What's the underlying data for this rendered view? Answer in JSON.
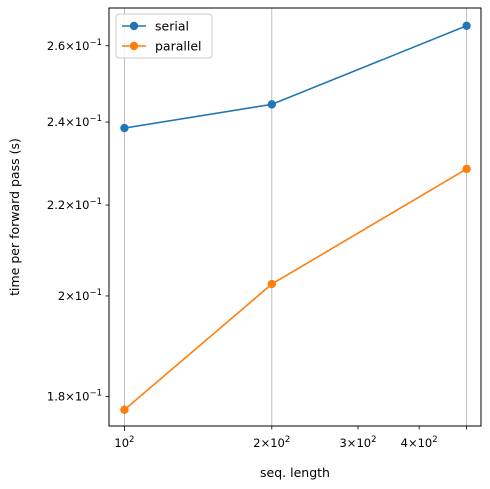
{
  "chart_data": {
    "type": "line",
    "xlabel": "seq. length",
    "ylabel": "time per forward pass (s)",
    "xscale": "log",
    "yscale": "log",
    "xlim": [
      93,
      535
    ],
    "ylim": [
      0.1745,
      0.2705
    ],
    "x": [
      100,
      200,
      500
    ],
    "series": [
      {
        "name": "serial",
        "color": "#1f77b4",
        "values": [
          0.2385,
          0.2445,
          0.2655
        ]
      },
      {
        "name": "parallel",
        "color": "#ff7f0e",
        "values": [
          0.1775,
          0.2025,
          0.2285
        ]
      }
    ],
    "x_ticks": [
      {
        "value": 100,
        "base": "10",
        "exp": "2",
        "coef": ""
      },
      {
        "value": 200,
        "base": "10",
        "exp": "2",
        "coef": "2×"
      },
      {
        "value": 300,
        "base": "10",
        "exp": "2",
        "coef": "3×"
      },
      {
        "value": 400,
        "base": "10",
        "exp": "2",
        "coef": "4×"
      },
      {
        "value": 500,
        "base": "",
        "exp": "",
        "coef": ""
      }
    ],
    "y_ticks": [
      {
        "value": 0.18,
        "coef": "1.8×",
        "base": "10",
        "exp": "−1"
      },
      {
        "value": 0.2,
        "coef": "2×",
        "base": "10",
        "exp": "−1"
      },
      {
        "value": 0.22,
        "coef": "2.2×",
        "base": "10",
        "exp": "−1"
      },
      {
        "value": 0.24,
        "coef": "2.4×",
        "base": "10",
        "exp": "−1"
      },
      {
        "value": 0.26,
        "coef": "2.6×",
        "base": "10",
        "exp": "−1"
      }
    ],
    "grid": "x-major",
    "legend_position": "top-left"
  }
}
